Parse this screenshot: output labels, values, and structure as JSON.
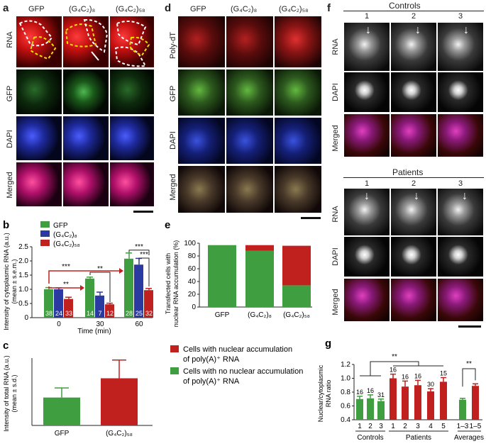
{
  "panel_a": {
    "letter": "a",
    "columns": [
      "GFP",
      "(G₄C₂)₈",
      "(G₄C₂)₅₈"
    ],
    "rows": [
      "RNA",
      "GFP",
      "DAPI",
      "Merged"
    ]
  },
  "panel_d": {
    "letter": "d",
    "columns": [
      "GFP",
      "(G₄C₂)₈",
      "(G₄C₂)₅₈"
    ],
    "rows": [
      "Poly-dT",
      "GFP",
      "DAPI",
      "Merged"
    ]
  },
  "panel_f": {
    "letter": "f",
    "controls_title": "Controls",
    "patients_title": "Patients",
    "columns": [
      "1",
      "2",
      "3"
    ],
    "rows": [
      "RNA",
      "DAPI",
      "Merged"
    ]
  },
  "colors": {
    "green": "#3f9e3f",
    "blue": "#2a3aa0",
    "red": "#c0201e"
  },
  "chart_data": [
    {
      "id": "b",
      "letter": "b",
      "type": "bar",
      "ylabel_line1": "Intensity of cytoplasmic RNA (a.u.)",
      "ylabel_line2": "(mean ± s.e.m.)",
      "xlabel": "Time (min)",
      "categories": [
        "0",
        "30",
        "60"
      ],
      "ylim": [
        0,
        2.5
      ],
      "yticks": [
        "0",
        "0.5",
        "1.0",
        "1.5",
        "2.0",
        "2.5"
      ],
      "legend": [
        "GFP",
        "(G₄C₂)₈",
        "(G₄C₂)₅₈"
      ],
      "series": [
        {
          "name": "GFP",
          "values": [
            1.0,
            1.38,
            2.08
          ],
          "errors": [
            0.06,
            0.05,
            0.2
          ],
          "n": [
            "38",
            "14",
            "28"
          ]
        },
        {
          "name": "(G₄C₂)₈",
          "values": [
            1.0,
            0.78,
            1.87
          ],
          "errors": [
            0.05,
            0.12,
            0.22
          ],
          "n": [
            "24",
            "7",
            "25"
          ]
        },
        {
          "name": "(G₄C₂)₅₈",
          "values": [
            0.66,
            0.47,
            0.97
          ],
          "errors": [
            0.06,
            0.04,
            0.06
          ],
          "n": [
            "33",
            "12",
            "32"
          ]
        }
      ],
      "annotations": [
        "**",
        "***",
        "**",
        "***",
        "***"
      ]
    },
    {
      "id": "c",
      "letter": "c",
      "type": "bar",
      "ylabel_line1": "Intensity of total RNA (a.u.)",
      "ylabel_line2": "(mean ± s.d.)",
      "categories": [
        "GFP",
        "(G₄C₂)₅₈"
      ],
      "values": [
        14.5,
        24.5
      ],
      "errors": [
        5,
        9.5
      ],
      "ylim": [
        0,
        35
      ]
    },
    {
      "id": "e",
      "letter": "e",
      "type": "bar",
      "stacked": true,
      "ylabel_line1": "Transfected cells with",
      "ylabel_line2": "nuclear RNA accumulation (%)",
      "categories": [
        "GFP",
        "(G₄C₂)₈",
        "(G₄C₂)₅₈"
      ],
      "ylim": [
        0,
        100
      ],
      "yticks": [
        "0",
        "20",
        "40",
        "60",
        "80",
        "100"
      ],
      "series": [
        {
          "name": "Cells with no nuclear accumulation of poly(A)⁺ RNA",
          "values": [
            97,
            88,
            34
          ]
        },
        {
          "name": "Cells with nuclear accumulation of poly(A)⁺ RNA",
          "values": [
            0,
            9,
            62
          ]
        }
      ],
      "legend_line1_red": "Cells with nuclear accumulation",
      "legend_line2_red": "of poly(A)⁺ RNA",
      "legend_line1_green": "Cells with no nuclear accumulation",
      "legend_line2_green": "of poly(A)⁺ RNA"
    },
    {
      "id": "g",
      "letter": "g",
      "type": "bar",
      "ylabel_line1": "Nuclear/cytoplasmic",
      "ylabel_line2": "RNA ratio",
      "ylim": [
        0.4,
        1.2
      ],
      "yticks": [
        "0.4",
        "0.6",
        "0.8",
        "1.0",
        "1.2"
      ],
      "groups": [
        "Controls",
        "Patients",
        "Averages"
      ],
      "categories": [
        "1",
        "2",
        "3",
        "1",
        "2",
        "3",
        "4",
        "5",
        "1–3",
        "1–5"
      ],
      "values": [
        0.7,
        0.71,
        0.67,
        1.0,
        0.88,
        0.9,
        0.81,
        0.95,
        0.69,
        0.89
      ],
      "errors": [
        0.04,
        0.05,
        0.03,
        0.06,
        0.08,
        0.07,
        0.04,
        0.06,
        0.02,
        0.03
      ],
      "n": [
        "16",
        "16",
        "31",
        "16",
        "16",
        "16",
        "30",
        "15",
        "",
        ""
      ],
      "annotations": [
        "**",
        "**"
      ]
    }
  ]
}
